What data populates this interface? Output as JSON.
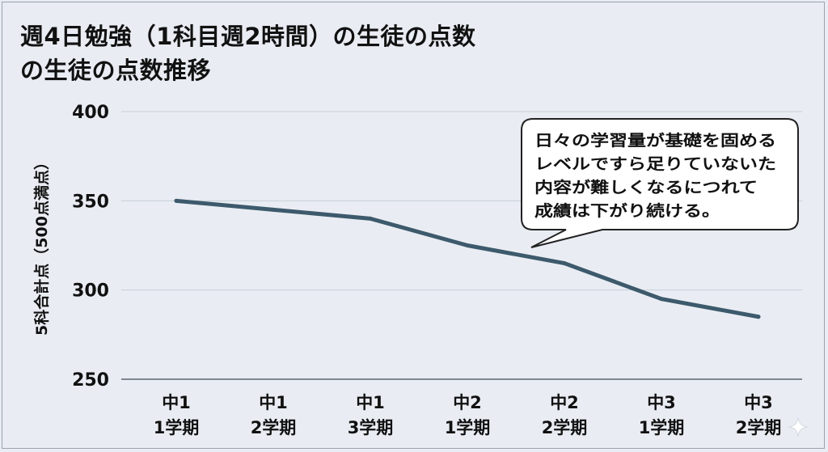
{
  "chart_data": {
    "type": "line",
    "title": "週4日勉強（1科目週2時間）の生徒の点数の生徒の点数推移",
    "title_lines": [
      "週4日勉強（1科目週2時間）の生徒の点数",
      "の生徒の点数推移"
    ],
    "xlabel": "",
    "ylabel": "5科合計点（500点満点）",
    "categories": [
      [
        "中1",
        "1学期"
      ],
      [
        "中1",
        "2学期"
      ],
      [
        "中1",
        "3学期"
      ],
      [
        "中2",
        "1学期"
      ],
      [
        "中2",
        "2学期"
      ],
      [
        "中3",
        "1学期"
      ],
      [
        "中3",
        "2学期"
      ]
    ],
    "series": [
      {
        "values": [
          350,
          345,
          340,
          325,
          315,
          295,
          285
        ],
        "color": "#3d5a6c"
      }
    ],
    "ylim": [
      250,
      400
    ],
    "yticks": [
      250,
      300,
      350,
      400
    ],
    "grid": true,
    "legend": false,
    "annotation": {
      "lines": [
        "日々の学習量が基礎を固める",
        "レベルですら足りていないた",
        "内容が難しくなるにつれて",
        "成績は下がり続ける。"
      ]
    }
  }
}
